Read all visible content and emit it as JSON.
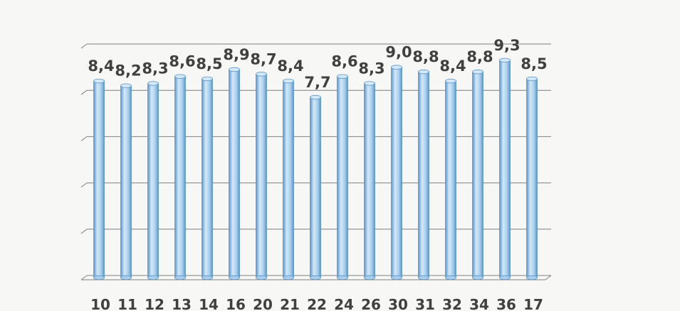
{
  "chart_data": {
    "type": "bar",
    "categories": [
      "10",
      "11",
      "12",
      "13",
      "14",
      "16",
      "20",
      "21",
      "22",
      "24",
      "26",
      "30",
      "31",
      "32",
      "34",
      "36",
      "17"
    ],
    "values": [
      8.4,
      8.2,
      8.3,
      8.6,
      8.5,
      8.9,
      8.7,
      8.4,
      7.7,
      8.6,
      8.3,
      9.0,
      8.8,
      8.4,
      8.8,
      9.3,
      8.5
    ],
    "value_labels": [
      "8,4",
      "8,2",
      "8,3",
      "8,6",
      "8,5",
      "8,9",
      "8,7",
      "8,4",
      "7,7",
      "8,6",
      "8,3",
      "9,0",
      "8,8",
      "8,4",
      "8,8",
      "9,3",
      "8,5"
    ],
    "ylim": [
      0,
      10
    ],
    "grid": true,
    "legend": "none",
    "colors": {
      "bar_fill": "#a9cfee",
      "bar_edge": "#5b95c8",
      "bar_light": "#d4e8f7",
      "gridline": "#7f7f7f",
      "label": "#404040",
      "background": "#f7f7f6"
    }
  }
}
